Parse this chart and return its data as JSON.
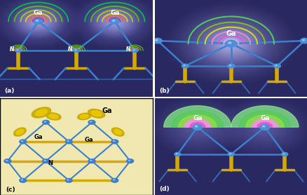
{
  "figure_size": [
    4.39,
    2.78
  ],
  "dpi": 100,
  "bg_purple": "#2a2860",
  "panel_labels": [
    "(a)",
    "(b)",
    "(c)",
    "(d)"
  ],
  "blue_atom": "#4a90d9",
  "blue_bond": "#3a80cc",
  "yellow_bond": "#d4aa00",
  "yellow_blob": "#d4aa00",
  "panel_c_bg": "#f0e8b0",
  "white_text": "white",
  "black_text": "black",
  "contour_a_colors": [
    "#00cc44",
    "#55cc00",
    "#aadd00",
    "#ffcc00",
    "#ff6600",
    "#dd00aa",
    "#880066"
  ],
  "contour_b_colors": [
    "#55dd55",
    "#88cc00",
    "#ddee00",
    "#ff88cc",
    "#ff44dd",
    "#ddaaee"
  ],
  "contour_d_colors": [
    "#88ee88",
    "#55cc55",
    "#99dd44",
    "#ff88ff",
    "#ff44cc"
  ],
  "contour_n_colors": [
    "#55cc44",
    "#88cc00",
    "#ffaa00",
    "#cc44aa"
  ],
  "glow_bg": "#6666cc"
}
